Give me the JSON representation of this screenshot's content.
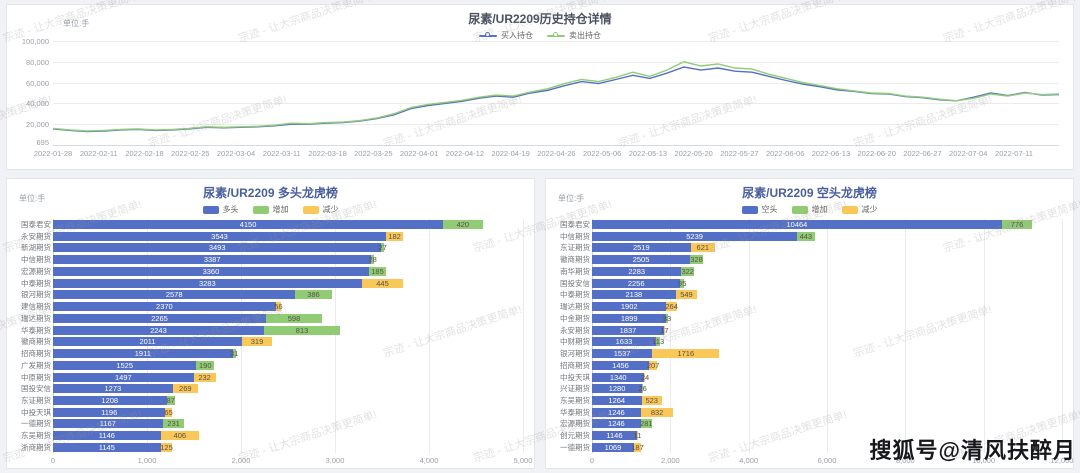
{
  "page": {
    "tile_watermark": "宗迹 - 让大宗商品决策更简单!",
    "sohu_watermark": "搜狐号@清风扶醉月"
  },
  "colors": {
    "blue": "#5470c6",
    "green": "#91cc75",
    "orange": "#fac858"
  },
  "chart_data": [
    {
      "type": "line",
      "title": "尿素/UR2209历史持仓详情",
      "unit_label": "单位:手",
      "ylim": [
        695,
        100000
      ],
      "y_ticks": [
        "100,000",
        "80,000",
        "60,000",
        "40,000",
        "20,000"
      ],
      "y_min_tick": "695",
      "x_labels": [
        "2022-01-28",
        "2022-02-11",
        "2022-02-18",
        "2022-02-25",
        "2022-03-04",
        "2022-03-11",
        "2022-03-18",
        "2022-03-25",
        "2022-04-01",
        "2022-04-12",
        "2022-04-19",
        "2022-04-26",
        "2022-05-06",
        "2022-05-13",
        "2022-05-20",
        "2022-05-27",
        "2022-06-06",
        "2022-06-13",
        "2022-06-20",
        "2022-06-27",
        "2022-07-04",
        "2022-07-11"
      ],
      "legend_position": "top-center",
      "grid": true,
      "series": [
        {
          "name": "买入持仓",
          "color_key": "blue",
          "values": [
            15500,
            14000,
            13000,
            13500,
            14500,
            15000,
            14000,
            14500,
            15500,
            17000,
            16500,
            17000,
            17500,
            18500,
            20000,
            20000,
            21000,
            21500,
            23000,
            25500,
            29000,
            35000,
            38000,
            40000,
            42000,
            45000,
            47000,
            46000,
            50000,
            52500,
            57000,
            61000,
            59000,
            63000,
            67000,
            64000,
            69000,
            75000,
            72000,
            74000,
            71000,
            70000,
            66000,
            62000,
            58500,
            56000,
            53000,
            51500,
            49500,
            49000,
            46500,
            45500,
            43500,
            42500,
            46000,
            50000,
            47500,
            50500,
            48000,
            48500
          ]
        },
        {
          "name": "卖出持仓",
          "color_key": "green",
          "values": [
            16000,
            14500,
            13500,
            14000,
            15000,
            15500,
            14500,
            15000,
            16000,
            17500,
            17000,
            17500,
            18000,
            19000,
            21000,
            20500,
            21500,
            22000,
            23500,
            26000,
            30000,
            36000,
            39000,
            41000,
            43000,
            46000,
            48000,
            47000,
            51000,
            54000,
            59000,
            63000,
            61000,
            65000,
            70000,
            66000,
            72000,
            80000,
            76000,
            78000,
            74000,
            73000,
            68000,
            64000,
            60000,
            57000,
            54000,
            52000,
            50000,
            49500,
            47000,
            46000,
            44000,
            42500,
            45000,
            49000,
            47000,
            50000,
            48500,
            49000
          ]
        }
      ]
    },
    {
      "type": "bar",
      "orientation": "horizontal",
      "title": "尿素/UR2209 多头龙虎榜",
      "unit_label": "单位:手",
      "legend": [
        {
          "name": "多头",
          "color_key": "blue"
        },
        {
          "name": "增加",
          "color_key": "green"
        },
        {
          "name": "减少",
          "color_key": "orange"
        }
      ],
      "xlim": [
        0,
        5000
      ],
      "x_ticks": [
        "0",
        "1,000",
        "2,000",
        "3,000",
        "4,000",
        "5,000"
      ],
      "rows": [
        {
          "company": "国泰君安",
          "main": 4150,
          "change": 420,
          "change_type": "increase"
        },
        {
          "company": "永安期货",
          "main": 3543,
          "change": 182,
          "change_type": "decrease"
        },
        {
          "company": "新湖期货",
          "main": 3493,
          "change": 27,
          "change_type": "increase"
        },
        {
          "company": "中信期货",
          "main": 3387,
          "change": 28,
          "change_type": "increase"
        },
        {
          "company": "宏源期货",
          "main": 3360,
          "change": 185,
          "change_type": "increase"
        },
        {
          "company": "中泰期货",
          "main": 3283,
          "change": 445,
          "change_type": "decrease"
        },
        {
          "company": "银河期货",
          "main": 2578,
          "change": 386,
          "change_type": "increase"
        },
        {
          "company": "建信期货",
          "main": 2370,
          "change": 56,
          "change_type": "decrease"
        },
        {
          "company": "瑞达期货",
          "main": 2265,
          "change": 598,
          "change_type": "increase"
        },
        {
          "company": "华泰期货",
          "main": 2243,
          "change": 813,
          "change_type": "increase"
        },
        {
          "company": "徽商期货",
          "main": 2011,
          "change": 319,
          "change_type": "decrease"
        },
        {
          "company": "招商期货",
          "main": 1911,
          "change": 31,
          "change_type": "increase"
        },
        {
          "company": "广发期货",
          "main": 1525,
          "change": 190,
          "change_type": "increase"
        },
        {
          "company": "中原期货",
          "main": 1497,
          "change": 232,
          "change_type": "decrease"
        },
        {
          "company": "国投安信",
          "main": 1273,
          "change": 269,
          "change_type": "decrease"
        },
        {
          "company": "东证期货",
          "main": 1208,
          "change": 87,
          "change_type": "increase"
        },
        {
          "company": "中投天琪",
          "main": 1196,
          "change": 65,
          "change_type": "decrease"
        },
        {
          "company": "一德期货",
          "main": 1167,
          "change": 231,
          "change_type": "increase"
        },
        {
          "company": "东吴期货",
          "main": 1146,
          "change": 406,
          "change_type": "decrease"
        },
        {
          "company": "浙商期货",
          "main": 1145,
          "change": 125,
          "change_type": "decrease"
        }
      ]
    },
    {
      "type": "bar",
      "orientation": "horizontal",
      "title": "尿素/UR2209 空头龙虎榜",
      "unit_label": "单位:手",
      "legend": [
        {
          "name": "空头",
          "color_key": "blue"
        },
        {
          "name": "增加",
          "color_key": "green"
        },
        {
          "name": "减少",
          "color_key": "orange"
        }
      ],
      "xlim": [
        0,
        12000
      ],
      "x_ticks": [
        "0",
        "2,000",
        "4,000",
        "6,000",
        "8,000",
        "10,000",
        "12,000"
      ],
      "rows": [
        {
          "company": "国泰君安",
          "main": 10464,
          "change": 776,
          "change_type": "increase"
        },
        {
          "company": "中信期货",
          "main": 5239,
          "change": 443,
          "change_type": "increase"
        },
        {
          "company": "东证期货",
          "main": 2519,
          "change": 621,
          "change_type": "decrease"
        },
        {
          "company": "徽商期货",
          "main": 2505,
          "change": 328,
          "change_type": "increase"
        },
        {
          "company": "南华期货",
          "main": 2283,
          "change": 322,
          "change_type": "increase"
        },
        {
          "company": "国投安信",
          "main": 2256,
          "change": 95,
          "change_type": "increase"
        },
        {
          "company": "中泰期货",
          "main": 2138,
          "change": 549,
          "change_type": "decrease"
        },
        {
          "company": "瑞达期货",
          "main": 1902,
          "change": 264,
          "change_type": "decrease"
        },
        {
          "company": "中金期货",
          "main": 1899,
          "change": 33,
          "change_type": "increase"
        },
        {
          "company": "永安期货",
          "main": 1837,
          "change": 17,
          "change_type": "decrease"
        },
        {
          "company": "中财期货",
          "main": 1633,
          "change": 113,
          "change_type": "increase"
        },
        {
          "company": "银河期货",
          "main": 1537,
          "change": 1716,
          "change_type": "decrease"
        },
        {
          "company": "招商期货",
          "main": 1456,
          "change": 207,
          "change_type": "decrease"
        },
        {
          "company": "中投天琪",
          "main": 1340,
          "change": 24,
          "change_type": "decrease"
        },
        {
          "company": "兴证期货",
          "main": 1280,
          "change": 26,
          "change_type": "increase"
        },
        {
          "company": "东吴期货",
          "main": 1264,
          "change": 523,
          "change_type": "decrease"
        },
        {
          "company": "华泰期货",
          "main": 1246,
          "change": 832,
          "change_type": "decrease"
        },
        {
          "company": "宏源期货",
          "main": 1246,
          "change": 281,
          "change_type": "increase"
        },
        {
          "company": "创元期货",
          "main": 1146,
          "change": 11,
          "change_type": "decrease"
        },
        {
          "company": "一德期货",
          "main": 1069,
          "change": 187,
          "change_type": "decrease"
        }
      ]
    }
  ]
}
